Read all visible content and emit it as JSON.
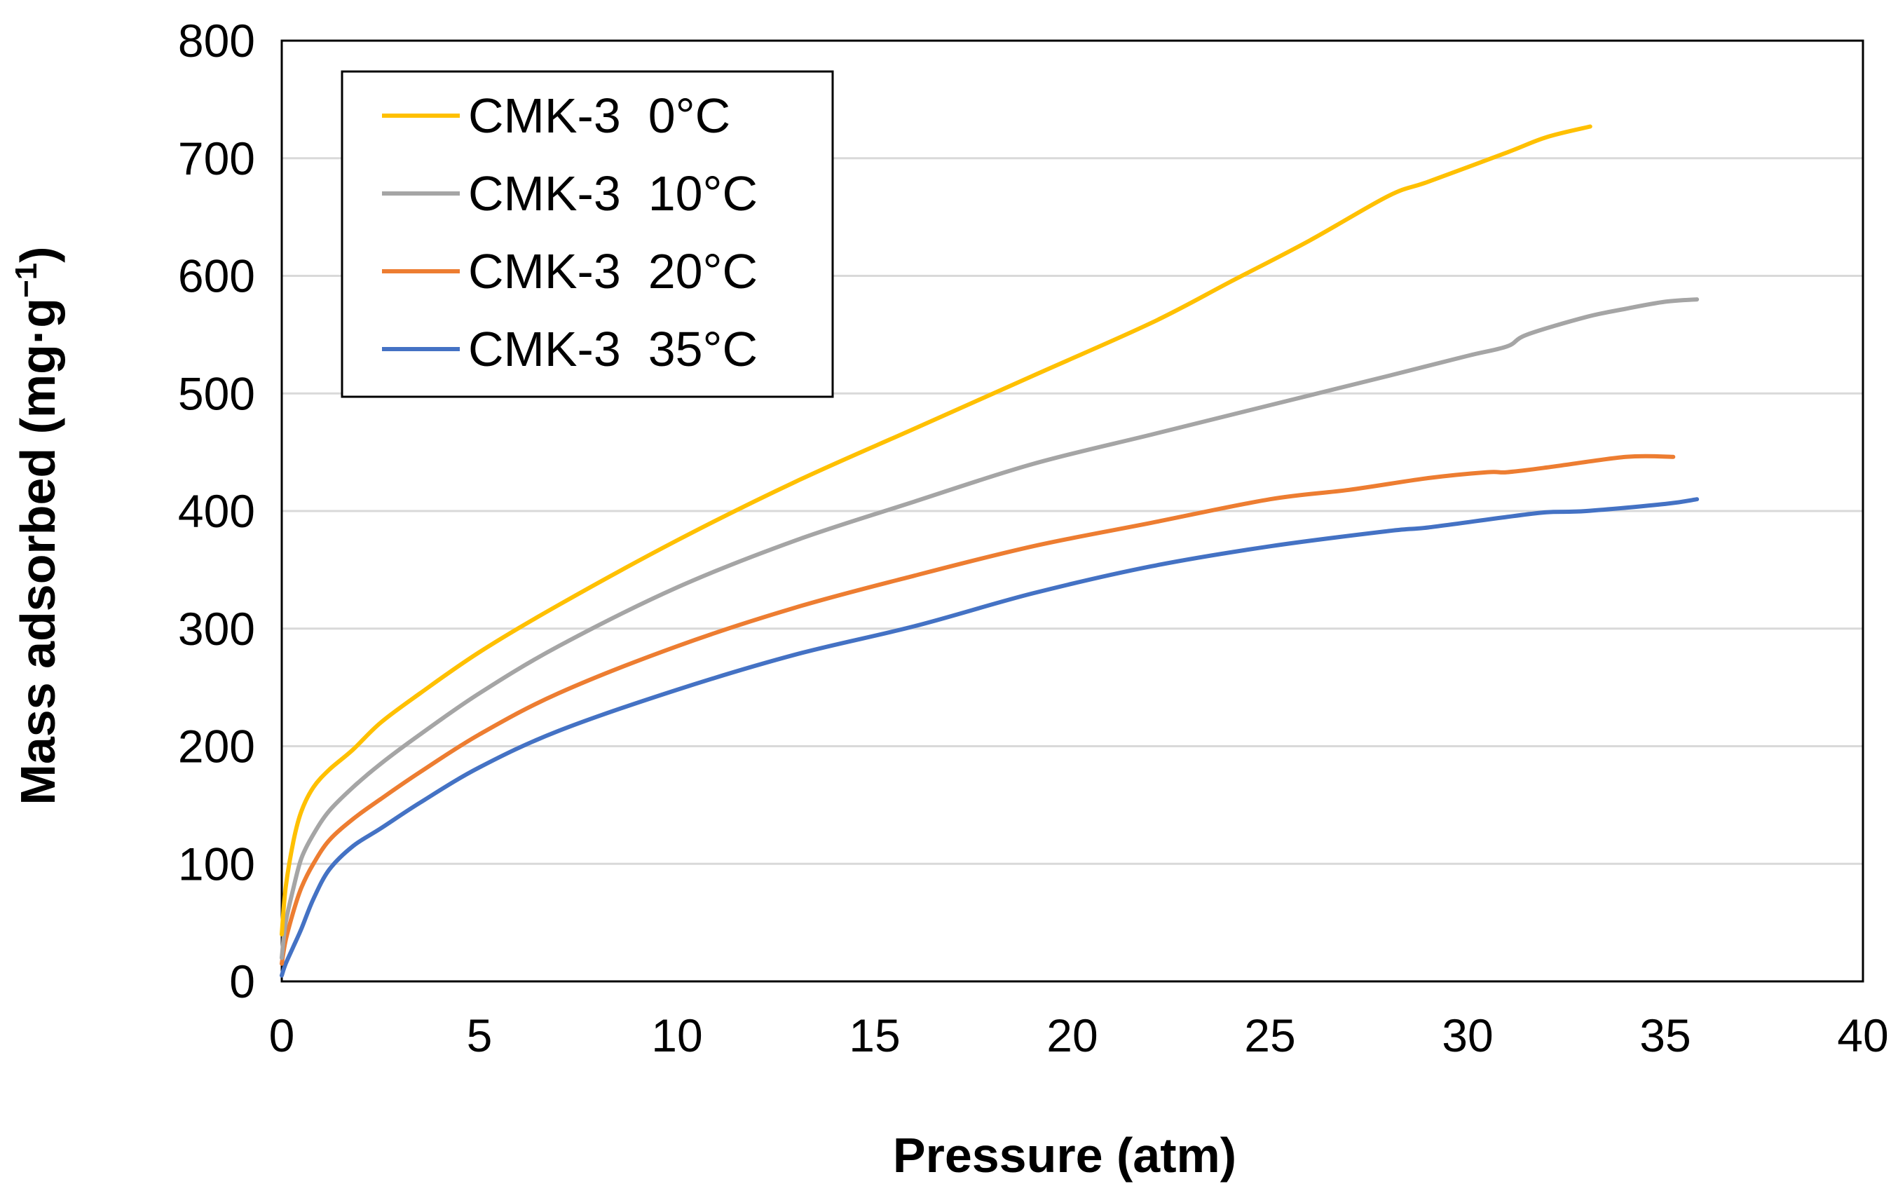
{
  "chart_data": {
    "type": "line",
    "title": "",
    "xlabel": "Pressure (atm)",
    "ylabel": "Mass adsorbed (mg·g",
    "ylabel_superscript": "−1",
    "ylabel_suffix": ")",
    "xlim": [
      0,
      40
    ],
    "ylim": [
      0,
      800
    ],
    "x_ticks": [
      "0",
      "5",
      "10",
      "15",
      "20",
      "25",
      "30",
      "35",
      "40"
    ],
    "y_ticks": [
      "0",
      "100",
      "200",
      "300",
      "400",
      "500",
      "600",
      "700",
      "800"
    ],
    "grid": "horizontal",
    "legend_position": "top-left",
    "series": [
      {
        "name": "CMK-3  0°C",
        "color": "#FFC000",
        "x": [
          0,
          0.1,
          0.3,
          0.5,
          0.8,
          1.2,
          1.8,
          2.5,
          3.5,
          5,
          7,
          10,
          13,
          16,
          19,
          22,
          24,
          26,
          28,
          29,
          31,
          32,
          33.1
        ],
        "y": [
          40,
          80,
          120,
          145,
          165,
          180,
          197,
          220,
          245,
          280,
          320,
          375,
          425,
          470,
          515,
          560,
          595,
          630,
          668,
          680,
          705,
          718,
          727
        ]
      },
      {
        "name": "CMK-3  10°C",
        "color": "#A5A5A5",
        "x": [
          0,
          0.1,
          0.3,
          0.5,
          0.8,
          1.2,
          1.8,
          2.5,
          3.5,
          5,
          7,
          10,
          13,
          16,
          19,
          22,
          25,
          28,
          30,
          31,
          31.5,
          33,
          34,
          35,
          35.8
        ],
        "y": [
          20,
          50,
          80,
          105,
          125,
          145,
          165,
          185,
          210,
          245,
          285,
          335,
          375,
          408,
          440,
          465,
          490,
          515,
          532,
          540,
          550,
          565,
          572,
          578,
          580
        ]
      },
      {
        "name": "CMK-3  20°C",
        "color": "#ED7D31",
        "x": [
          0,
          0.1,
          0.3,
          0.5,
          0.8,
          1.2,
          1.8,
          2.5,
          3.5,
          5,
          7,
          10,
          13,
          16,
          19,
          22,
          25,
          27,
          29,
          30.5,
          31,
          32,
          34,
          35.2
        ],
        "y": [
          15,
          35,
          60,
          80,
          100,
          120,
          138,
          155,
          178,
          210,
          245,
          285,
          318,
          345,
          370,
          390,
          410,
          418,
          428,
          433,
          433,
          437,
          446,
          446
        ]
      },
      {
        "name": "CMK-3  35°C",
        "color": "#4472C4",
        "x": [
          0,
          0.1,
          0.3,
          0.5,
          0.8,
          1.2,
          1.8,
          2.5,
          3.5,
          5,
          7,
          10,
          13,
          16,
          19,
          22,
          25,
          28,
          29,
          31,
          32,
          33,
          35,
          35.8
        ],
        "y": [
          5,
          15,
          30,
          45,
          70,
          95,
          115,
          130,
          152,
          182,
          213,
          248,
          278,
          302,
          330,
          353,
          370,
          383,
          386,
          395,
          399,
          400,
          406,
          410
        ]
      }
    ]
  }
}
